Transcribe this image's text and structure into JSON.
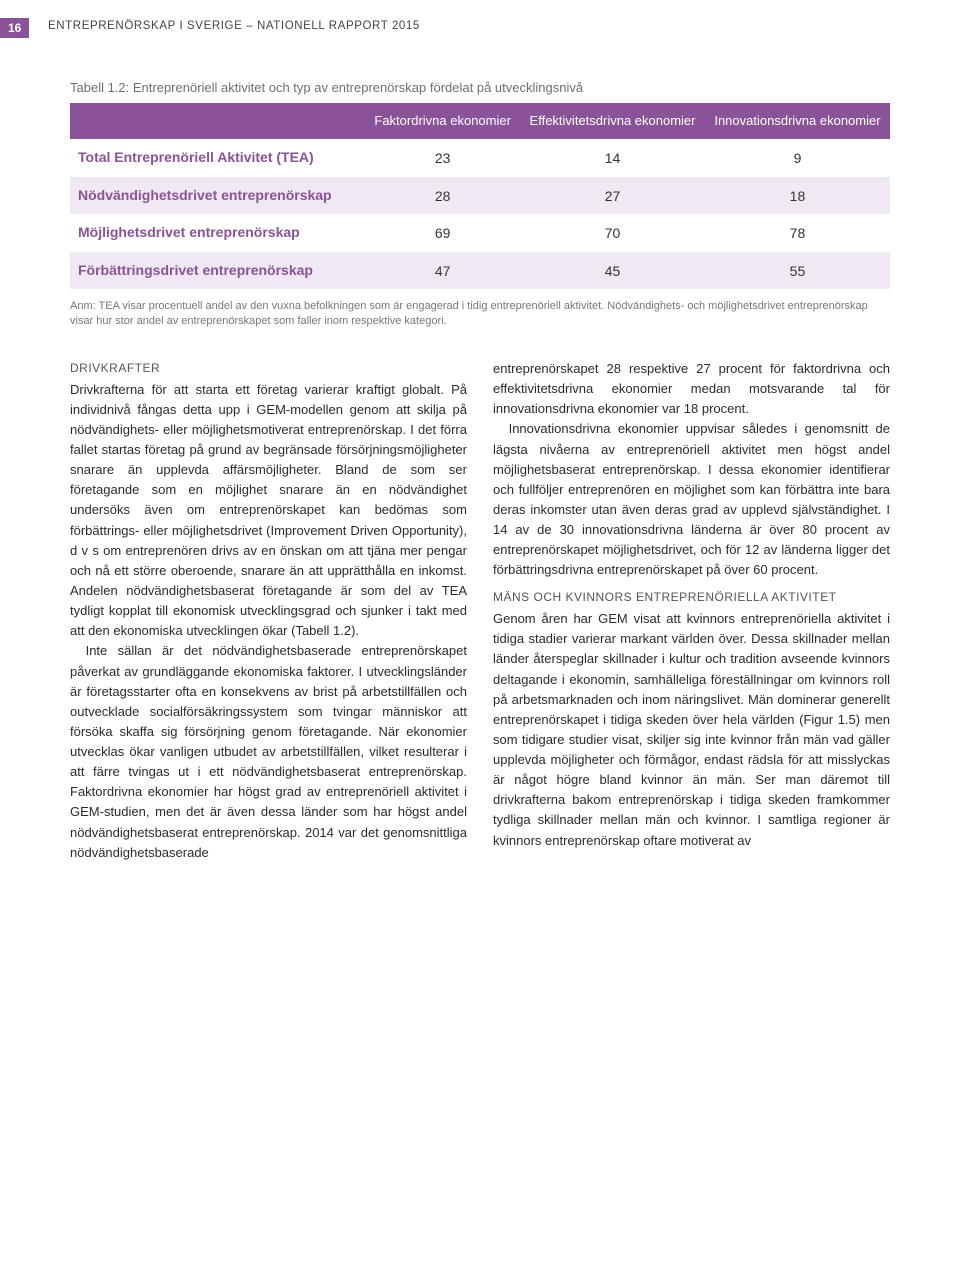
{
  "page_number": "16",
  "running_header": "ENTREPRENÖRSKAP I SVERIGE – NATIONELL RAPPORT 2015",
  "table_caption": "Tabell 1.2: Entreprenöriell aktivitet och typ av entreprenörskap fördelat på utvecklingsnivå",
  "table": {
    "columns": [
      "",
      "Faktordrivna ekonomier",
      "Effektivitetsdrivna ekonomier",
      "Innovationsdrivna ekonomier"
    ],
    "rows": [
      [
        "Total Entreprenöriell Aktivitet (TEA)",
        "23",
        "14",
        "9"
      ],
      [
        "Nödvändighetsdrivet entreprenörskap",
        "28",
        "27",
        "18"
      ],
      [
        "Möjlighetsdrivet entreprenörskap",
        "69",
        "70",
        "78"
      ],
      [
        "Förbättringsdrivet entreprenörskap",
        "47",
        "45",
        "55"
      ]
    ]
  },
  "table_note": "Anm: TEA visar procentuell andel av den vuxna befolkningen som är engagerad i tidig entreprenöriell aktivitet. Nödvändighets- och möjlighetsdrivet entreprenörskap visar hur stor andel av entreprenörskapet som faller inom respektive kategori.",
  "left_col": {
    "heading": "DRIVKRAFTER",
    "p1": "Drivkrafterna för att starta ett företag varierar kraftigt globalt. På individnivå fångas detta upp i GEM-modellen genom att skilja på nödvändighets- eller möjlighetsmotiverat entreprenörskap. I det förra fallet startas företag på grund av begränsade försörjningsmöjligheter snarare än upplevda affärsmöjligheter. Bland de som ser företagande som en möjlighet snarare än en nödvändighet undersöks även om entreprenörskapet kan bedömas som förbättrings- eller möjlighetsdrivet (Improvement Driven Opportunity), d v s om entreprenören drivs av en önskan om att tjäna mer pengar och nå ett större oberoende, snarare än att upprätthålla en inkomst. Andelen nödvändighetsbaserat företagande är som del av TEA tydligt kopplat till ekonomisk utvecklingsgrad och sjunker i takt med att den ekonomiska utvecklingen ökar (Tabell 1.2).",
    "p2": "Inte sällan är det nödvändighetsbaserade entreprenörskapet påverkat av grundläggande ekonomiska faktorer. I utvecklingsländer är företagsstarter ofta en konsekvens av brist på arbetstillfällen och outvecklade socialförsäkringssystem som tvingar människor att försöka skaffa sig försörjning genom företagande. När ekonomier utvecklas ökar vanligen utbudet av arbetstillfällen, vilket resulterar i att färre tvingas ut i ett nödvändighetsbaserat entreprenörskap. Faktordrivna ekonomier har högst grad av entreprenöriell aktivitet i GEM-studien, men det är även dessa länder som har högst andel nödvändighetsbaserat entreprenörskap. 2014 var det genomsnittliga nödvändighetsbaserade"
  },
  "right_col": {
    "p1": "entreprenörskapet 28 respektive 27 procent för faktordrivna och effektivitetsdrivna ekonomier medan motsvarande tal för innovationsdrivna ekonomier var 18 procent.",
    "p2": "Innovationsdrivna ekonomier uppvisar således i genomsnitt de lägsta nivåerna av entreprenöriell aktivitet men högst andel möjlighetsbaserat entreprenörskap. I dessa ekonomier identifierar och fullföljer entreprenören en möjlighet som kan förbättra inte bara deras inkomster utan även deras grad av upplevd självständighet. I 14 av de 30 innovationsdrivna länderna är över 80 procent av entreprenörskapet möjlighetsdrivet, och för 12 av länderna ligger det förbättringsdrivna entreprenörskapet på över 60 procent.",
    "heading": "MÄNS OCH KVINNORS ENTREPRENÖRIELLA AKTIVITET",
    "p3": "Genom åren har GEM visat att kvinnors entreprenöriella aktivitet i tidiga stadier varierar markant världen över. Dessa skillnader mellan länder återspeglar skillnader i kultur och tradition avseende kvinnors deltagande i ekonomin, samhälleliga föreställningar om kvinnors roll på arbetsmarknaden och inom näringslivet. Män dominerar generellt entreprenörskapet i tidiga skeden över hela världen (Figur 1.5) men som tidigare studier visat, skiljer sig inte kvinnor från män vad gäller upplevda möjligheter och förmågor, endast rädsla för att misslyckas är något högre bland kvinnor än män. Ser man däremot till drivkrafterna bakom entreprenörskap i tidiga skeden framkommer tydliga skillnader mellan män och kvinnor. I samtliga regioner är kvinnors entreprenörskap oftare motiverat av"
  }
}
